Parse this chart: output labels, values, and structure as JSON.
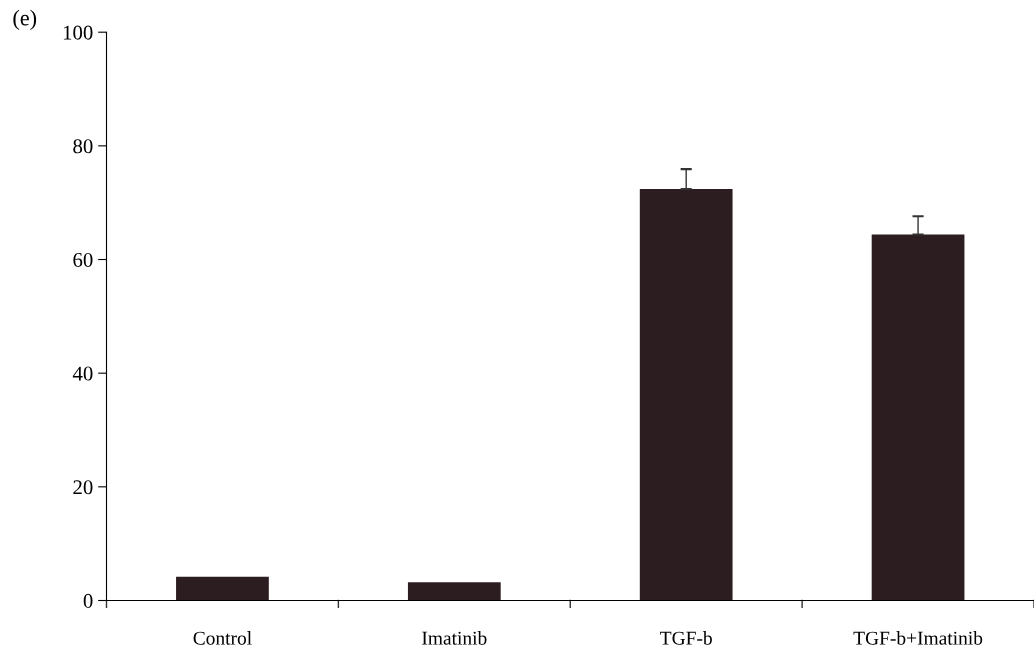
{
  "chart_data": {
    "type": "bar",
    "title": "(e)",
    "categories": [
      "Control",
      "Imatinib",
      "TGF-b",
      "TGF-b+Imatinib"
    ],
    "values": [
      4.2,
      3.2,
      72.4,
      64.4
    ],
    "errors": [
      null,
      null,
      3.5,
      3.2
    ],
    "color": "#2b1d20",
    "ylim": [
      0,
      100
    ],
    "yticks": [
      0,
      20,
      40,
      60,
      80,
      100
    ],
    "grid": false,
    "legend": false
  }
}
